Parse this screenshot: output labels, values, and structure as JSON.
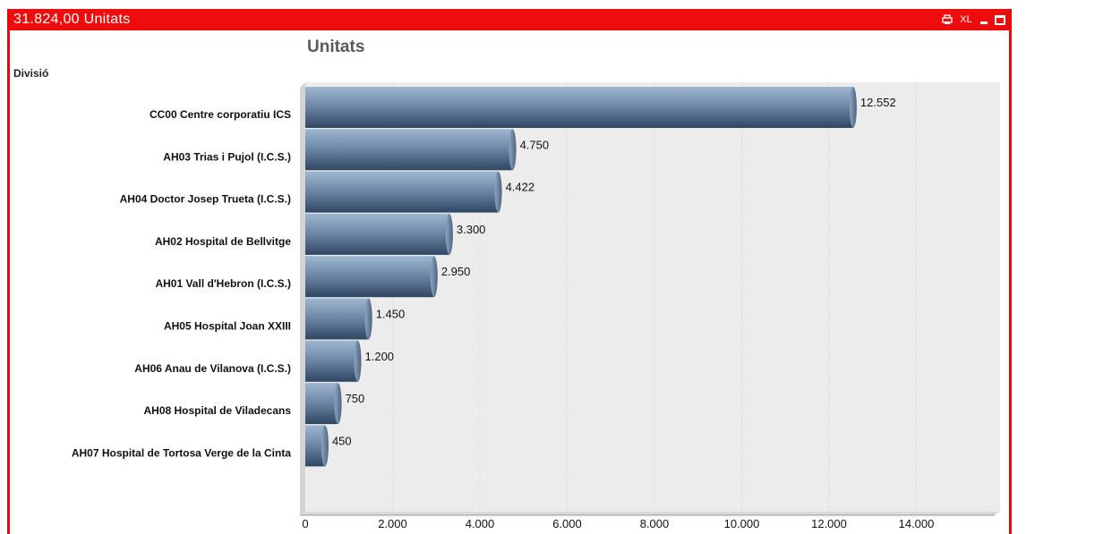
{
  "window": {
    "title": "31.824,00  Unitats",
    "icons": [
      "print-icon",
      "xl-export-icon",
      "minimize-icon",
      "maximize-icon"
    ],
    "xl_label": "XL",
    "accent": "#ee0c0c"
  },
  "chart_data": {
    "type": "bar",
    "orientation": "horizontal",
    "title": "Unitats",
    "dimension_label": "Divisió",
    "categories": [
      "CC00 Centre corporatiu ICS",
      "AH03 Trias i Pujol (I.C.S.)",
      "AH04 Doctor Josep Trueta (I.C.S.)",
      "AH02 Hospital de Bellvitge",
      "AH01 Vall d'Hebron (I.C.S.)",
      "AH05 Hospital Joan XXIII",
      "AH06 Anau de Vilanova (I.C.S.)",
      "AH08 Hospital de Viladecans",
      "AH07 Hospital de Tortosa Verge de la Cinta"
    ],
    "values": [
      12552,
      4750,
      4422,
      3300,
      2950,
      1450,
      1200,
      750,
      450
    ],
    "value_labels": [
      "12.552",
      "4.750",
      "4.422",
      "3.300",
      "2.950",
      "1.450",
      "1.200",
      "750",
      "450"
    ],
    "xlim": [
      0,
      16000
    ],
    "ticks": [
      0,
      2000,
      4000,
      6000,
      8000,
      10000,
      12000,
      14000
    ],
    "tick_labels": [
      "0",
      "2.000",
      "4.000",
      "6.000",
      "8.000",
      "10.000",
      "12.000",
      "14.000"
    ],
    "grid": true,
    "legend": "none",
    "bar_color": "#6f8aa9"
  }
}
